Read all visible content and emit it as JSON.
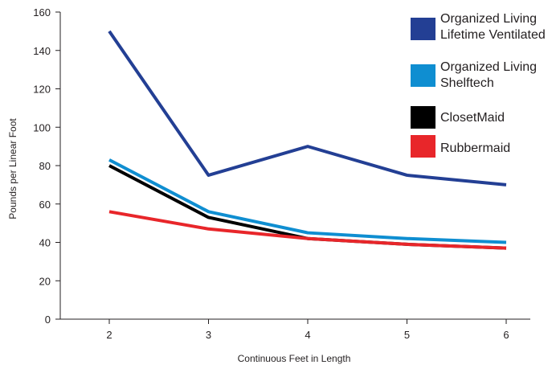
{
  "chart_data": {
    "type": "line",
    "title": "",
    "xlabel": "Continuous Feet in Length",
    "ylabel": "Pounds per Linear Foot",
    "x": [
      2,
      3,
      4,
      5,
      6
    ],
    "xticks": [
      "2",
      "3",
      "4",
      "5",
      "6"
    ],
    "ylim": [
      0,
      160
    ],
    "yticks": [
      "0",
      "20",
      "40",
      "60",
      "80",
      "100",
      "120",
      "140",
      "160"
    ],
    "grid": false,
    "legend_position": "top-right",
    "series": [
      {
        "name": "Organized Living Lifetime Ventilated",
        "legend_lines": [
          "Organized Living",
          "Lifetime Ventilated"
        ],
        "color": "#233f94",
        "values": [
          150,
          75,
          90,
          75,
          70
        ]
      },
      {
        "name": "Organized Living Shelftech",
        "legend_lines": [
          "Organized Living",
          "Shelftech"
        ],
        "color": "#0f8ed1",
        "values": [
          83,
          56,
          45,
          42,
          40
        ]
      },
      {
        "name": "ClosetMaid",
        "legend_lines": [
          "ClosetMaid"
        ],
        "color": "#000000",
        "values": [
          80,
          53,
          42,
          39,
          37
        ]
      },
      {
        "name": "Rubbermaid",
        "legend_lines": [
          "Rubbermaid"
        ],
        "color": "#e8262a",
        "values": [
          56,
          47,
          42,
          39,
          37
        ]
      }
    ]
  }
}
